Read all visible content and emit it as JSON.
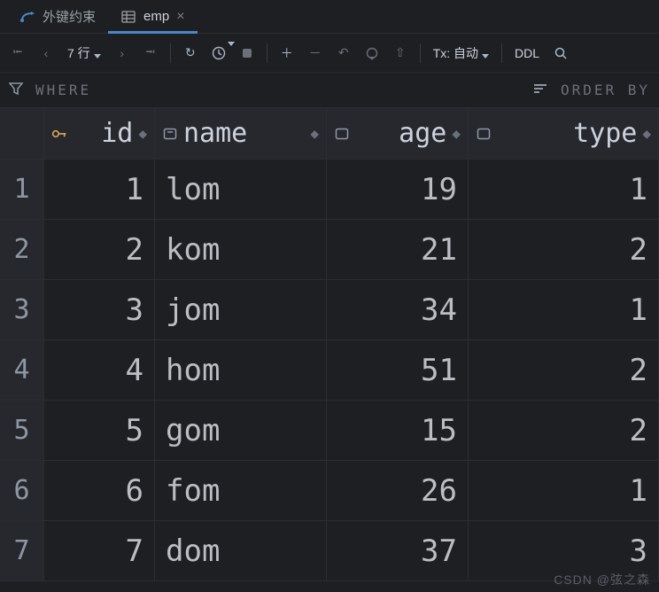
{
  "tabs": [
    {
      "label": "外键约束",
      "icon": "relation",
      "active": false
    },
    {
      "label": "emp",
      "icon": "table",
      "active": true
    }
  ],
  "toolbar": {
    "row_count_label": "7 行",
    "tx_label": "Tx: 自动",
    "ddl_label": "DDL"
  },
  "filterbar": {
    "where_label": "WHERE",
    "orderby_label": "ORDER BY"
  },
  "table": {
    "columns": [
      {
        "name": "id",
        "kind": "key",
        "align": "right"
      },
      {
        "name": "name",
        "kind": "str",
        "align": "left"
      },
      {
        "name": "age",
        "kind": "num",
        "align": "right"
      },
      {
        "name": "type",
        "kind": "num",
        "align": "right"
      }
    ],
    "rows": [
      {
        "n": "1",
        "id": "1",
        "name": "lom",
        "age": "19",
        "type": "1"
      },
      {
        "n": "2",
        "id": "2",
        "name": "kom",
        "age": "21",
        "type": "2"
      },
      {
        "n": "3",
        "id": "3",
        "name": "jom",
        "age": "34",
        "type": "1"
      },
      {
        "n": "4",
        "id": "4",
        "name": "hom",
        "age": "51",
        "type": "2"
      },
      {
        "n": "5",
        "id": "5",
        "name": "gom",
        "age": "15",
        "type": "2"
      },
      {
        "n": "6",
        "id": "6",
        "name": "fom",
        "age": "26",
        "type": "1"
      },
      {
        "n": "7",
        "id": "7",
        "name": "dom",
        "age": "37",
        "type": "3"
      }
    ]
  },
  "watermark": "CSDN @弦之森",
  "colors": {
    "bg": "#1e1f22",
    "panel": "#26282e",
    "border": "#2b2d30",
    "text": "#bcbec4",
    "muted": "#6c707a",
    "tab_underline": "#4a88c7"
  }
}
